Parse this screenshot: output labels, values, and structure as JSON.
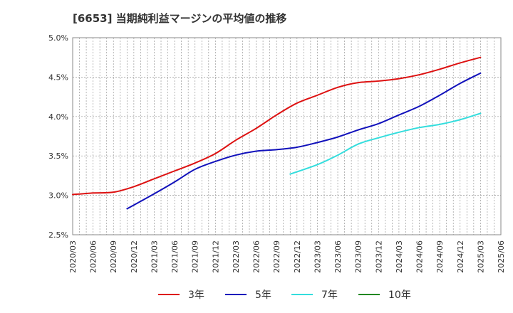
{
  "chart_data": {
    "type": "line",
    "title": "[6653]  当期純利益マージンの平均値の推移",
    "xlabel": "",
    "ylabel": "",
    "x_ticks": [
      "2020/03",
      "2020/06",
      "2020/09",
      "2020/12",
      "2021/03",
      "2021/06",
      "2021/09",
      "2021/12",
      "2022/03",
      "2022/06",
      "2022/09",
      "2022/12",
      "2023/03",
      "2023/06",
      "2023/09",
      "2023/12",
      "2024/03",
      "2024/06",
      "2024/09",
      "2024/12",
      "2025/03",
      "2025/06"
    ],
    "y_ticks": [
      "2.5%",
      "3.0%",
      "3.5%",
      "4.0%",
      "4.5%",
      "5.0%"
    ],
    "ylim": [
      2.5,
      5.0
    ],
    "grid": true,
    "legend_position": "bottom",
    "series": [
      {
        "name": "3年",
        "color": "#dd1111",
        "x": [
          "2020/03",
          "2020/06",
          "2020/09",
          "2020/12",
          "2021/03",
          "2021/06",
          "2021/09",
          "2021/12",
          "2022/03",
          "2022/06",
          "2022/09",
          "2022/12",
          "2023/03",
          "2023/06",
          "2023/09",
          "2023/12",
          "2024/03",
          "2024/06",
          "2024/09",
          "2024/12",
          "2025/03"
        ],
        "values": [
          3.01,
          3.03,
          3.04,
          3.11,
          3.21,
          3.31,
          3.41,
          3.53,
          3.7,
          3.85,
          4.02,
          4.17,
          4.27,
          4.37,
          4.43,
          4.45,
          4.48,
          4.53,
          4.6,
          4.68,
          4.75
        ]
      },
      {
        "name": "5年",
        "color": "#1111bb",
        "x": [
          "2020/11",
          "2021/03",
          "2021/06",
          "2021/09",
          "2021/12",
          "2022/03",
          "2022/06",
          "2022/09",
          "2022/12",
          "2023/03",
          "2023/06",
          "2023/09",
          "2023/12",
          "2024/03",
          "2024/06",
          "2024/09",
          "2024/12",
          "2025/03"
        ],
        "values": [
          2.83,
          3.02,
          3.17,
          3.33,
          3.43,
          3.51,
          3.56,
          3.58,
          3.61,
          3.67,
          3.74,
          3.83,
          3.91,
          4.02,
          4.13,
          4.27,
          4.42,
          4.55
        ]
      },
      {
        "name": "7年",
        "color": "#33dddd",
        "x": [
          "2022/11",
          "2023/03",
          "2023/06",
          "2023/09",
          "2023/12",
          "2024/03",
          "2024/06",
          "2024/09",
          "2024/12",
          "2025/03"
        ],
        "values": [
          3.27,
          3.39,
          3.51,
          3.65,
          3.73,
          3.8,
          3.86,
          3.9,
          3.96,
          4.04
        ]
      },
      {
        "name": "10年",
        "color": "#228822",
        "x": [],
        "values": []
      }
    ]
  }
}
